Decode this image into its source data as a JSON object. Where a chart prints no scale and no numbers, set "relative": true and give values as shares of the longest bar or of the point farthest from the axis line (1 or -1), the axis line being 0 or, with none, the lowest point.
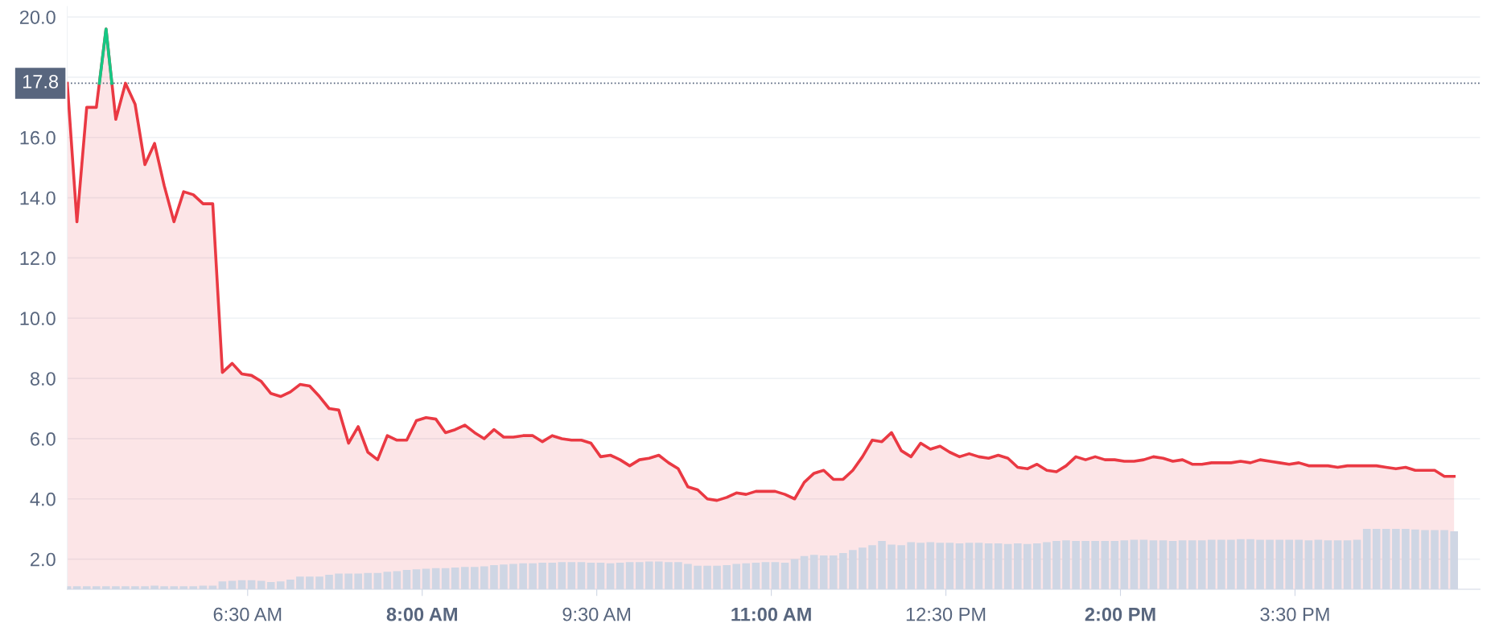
{
  "chart_data": [
    {
      "type": "area",
      "x": [
        4.95,
        5.033,
        5.117,
        5.2,
        5.283,
        5.367,
        5.45,
        5.533,
        5.617,
        5.7,
        5.783,
        5.867,
        5.95,
        6.033,
        6.117,
        6.2,
        6.283,
        6.367,
        6.45,
        6.533,
        6.617,
        6.7,
        6.783,
        6.867,
        6.95,
        7.033,
        7.117,
        7.2,
        7.283,
        7.367,
        7.45,
        7.533,
        7.617,
        7.7,
        7.783,
        7.867,
        7.95,
        8.033,
        8.117,
        8.2,
        8.283,
        8.367,
        8.45,
        8.533,
        8.617,
        8.7,
        8.783,
        8.867,
        8.95,
        9.033,
        9.117,
        9.2,
        9.283,
        9.367,
        9.45,
        9.533,
        9.617,
        9.7,
        9.783,
        9.867,
        9.95,
        10.033,
        10.117,
        10.2,
        10.283,
        10.367,
        10.45,
        10.533,
        10.617,
        10.7,
        10.783,
        10.867,
        10.95,
        11.033,
        11.117,
        11.2,
        11.283,
        11.367,
        11.45,
        11.533,
        11.617,
        11.7,
        11.783,
        11.867,
        11.95,
        12.033,
        12.117,
        12.2,
        12.283,
        12.367,
        12.45,
        12.533,
        12.617,
        12.7,
        12.783,
        12.867,
        12.95,
        13.033,
        13.117,
        13.2,
        13.283,
        13.367,
        13.45,
        13.533,
        13.617,
        13.7,
        13.783,
        13.867,
        13.95,
        14.033,
        14.117,
        14.2,
        14.283,
        14.367,
        14.45,
        14.533,
        14.617,
        14.7,
        14.783,
        14.867,
        14.95,
        15.033,
        15.117,
        15.2,
        15.283,
        15.367,
        15.45,
        15.533,
        15.617,
        15.7,
        15.783,
        15.867,
        15.95,
        16.033,
        16.117,
        16.2,
        16.283,
        16.367,
        16.45,
        16.533,
        16.617,
        16.7,
        16.783,
        16.867
      ],
      "series": [
        {
          "color": "#ea3943",
          "values": [
            17.8,
            13.2,
            17.0,
            17.0,
            19.6,
            16.6,
            17.8,
            17.1,
            15.1,
            15.8,
            14.4,
            13.2,
            14.2,
            14.1,
            13.8,
            13.8,
            8.2,
            8.5,
            8.15,
            8.1,
            7.9,
            7.5,
            7.4,
            7.55,
            7.8,
            7.75,
            7.4,
            7.0,
            6.95,
            5.85,
            6.4,
            5.55,
            5.3,
            6.1,
            5.95,
            5.95,
            6.6,
            6.7,
            6.65,
            6.2,
            6.3,
            6.45,
            6.2,
            6.0,
            6.3,
            6.05,
            6.05,
            6.1,
            6.1,
            5.9,
            6.1,
            6.0,
            5.95,
            5.95,
            5.85,
            5.4,
            5.45,
            5.3,
            5.1,
            5.3,
            5.35,
            5.45,
            5.2,
            5.0,
            4.4,
            4.3,
            4.0,
            3.95,
            4.05,
            4.2,
            4.15,
            4.25,
            4.25,
            4.25,
            4.15,
            4.0,
            4.55,
            4.85,
            4.95,
            4.65,
            4.65,
            4.95,
            5.4,
            5.95,
            5.9,
            6.2,
            5.6,
            5.4,
            5.85,
            5.65,
            5.75,
            5.55,
            5.4,
            5.5,
            5.4,
            5.35,
            5.45,
            5.35,
            5.05,
            5.0,
            5.15,
            4.95,
            4.9,
            5.1,
            5.4,
            5.3,
            5.4,
            5.3,
            5.3,
            5.25,
            5.25,
            5.3,
            5.4,
            5.35,
            5.25,
            5.3,
            5.15,
            5.15,
            5.2,
            5.2,
            5.2,
            5.25,
            5.2,
            5.3,
            5.25,
            5.2,
            5.15,
            5.2,
            5.1,
            5.1,
            5.1,
            5.05,
            5.1,
            5.1,
            5.1,
            5.1,
            5.05,
            5.0,
            5.05,
            4.95,
            4.95,
            4.95,
            4.75,
            4.75
          ]
        },
        {
          "type": "line",
          "color": "#16c784",
          "x": [
            5.226,
            5.283,
            5.333
          ],
          "values": [
            17.8,
            19.6,
            17.8
          ]
        }
      ],
      "xlim": [
        4.95,
        17.09
      ],
      "xticks": [
        {
          "value": 6.5,
          "label": "6:30 AM"
        },
        {
          "value": 8,
          "label": "8:00 AM"
        },
        {
          "value": 9.5,
          "label": "9:30 AM"
        },
        {
          "value": 11,
          "label": "11:00 AM"
        },
        {
          "value": 12.5,
          "label": "12:30 PM"
        },
        {
          "value": 14,
          "label": "2:00 PM"
        },
        {
          "value": 15.5,
          "label": "3:30 PM"
        }
      ],
      "ylim": [
        1.0,
        20.35
      ],
      "yticks": [
        {
          "value": 2,
          "label": "2.0"
        },
        {
          "value": 4,
          "label": "4.0"
        },
        {
          "value": 6,
          "label": "6.0"
        },
        {
          "value": 8,
          "label": "8.0"
        },
        {
          "value": 10,
          "label": "10.0"
        },
        {
          "value": 12,
          "label": "12.0"
        },
        {
          "value": 14,
          "label": "14.0"
        },
        {
          "value": 16,
          "label": "16.0"
        },
        {
          "value": 18,
          "label": null
        },
        {
          "value": 20,
          "label": "20.0"
        }
      ],
      "ref_lines": [
        {
          "axis": "y",
          "value": 17.8,
          "label": "17.8",
          "color": "#58667e",
          "line_style": "dotted"
        }
      ],
      "grid": "y"
    },
    {
      "type": "bar",
      "relative": true,
      "color": "#cfd6e4",
      "xlim": [
        4.95,
        17.09
      ],
      "x": [
        4.95,
        5.033,
        5.117,
        5.2,
        5.283,
        5.367,
        5.45,
        5.533,
        5.617,
        5.7,
        5.783,
        5.867,
        5.95,
        6.033,
        6.117,
        6.2,
        6.283,
        6.367,
        6.45,
        6.533,
        6.617,
        6.7,
        6.783,
        6.867,
        6.95,
        7.033,
        7.117,
        7.2,
        7.283,
        7.367,
        7.45,
        7.533,
        7.617,
        7.7,
        7.783,
        7.867,
        7.95,
        8.033,
        8.117,
        8.2,
        8.283,
        8.367,
        8.45,
        8.533,
        8.617,
        8.7,
        8.783,
        8.867,
        8.95,
        9.033,
        9.117,
        9.2,
        9.283,
        9.367,
        9.45,
        9.533,
        9.617,
        9.7,
        9.783,
        9.867,
        9.95,
        10.033,
        10.117,
        10.2,
        10.283,
        10.367,
        10.45,
        10.533,
        10.617,
        10.7,
        10.783,
        10.867,
        10.95,
        11.033,
        11.117,
        11.2,
        11.283,
        11.367,
        11.45,
        11.533,
        11.617,
        11.7,
        11.783,
        11.867,
        11.95,
        12.033,
        12.117,
        12.2,
        12.283,
        12.367,
        12.45,
        12.533,
        12.617,
        12.7,
        12.783,
        12.867,
        12.95,
        13.033,
        13.117,
        13.2,
        13.283,
        13.367,
        13.45,
        13.533,
        13.617,
        13.7,
        13.783,
        13.867,
        13.95,
        14.033,
        14.117,
        14.2,
        14.283,
        14.367,
        14.45,
        14.533,
        14.617,
        14.7,
        14.783,
        14.867,
        14.95,
        15.033,
        15.117,
        15.2,
        15.283,
        15.367,
        15.45,
        15.533,
        15.617,
        15.7,
        15.783,
        15.867,
        15.95,
        16.033,
        16.117,
        16.2,
        16.283,
        16.367,
        16.45,
        16.533,
        16.617,
        16.7,
        16.783,
        16.867
      ],
      "values": [
        0.05,
        0.05,
        0.05,
        0.05,
        0.05,
        0.05,
        0.05,
        0.05,
        0.05,
        0.06,
        0.05,
        0.05,
        0.05,
        0.05,
        0.06,
        0.06,
        0.13,
        0.14,
        0.15,
        0.15,
        0.14,
        0.12,
        0.13,
        0.16,
        0.21,
        0.21,
        0.21,
        0.24,
        0.26,
        0.26,
        0.26,
        0.27,
        0.27,
        0.29,
        0.3,
        0.32,
        0.33,
        0.34,
        0.35,
        0.35,
        0.36,
        0.37,
        0.37,
        0.38,
        0.4,
        0.41,
        0.42,
        0.43,
        0.43,
        0.44,
        0.44,
        0.45,
        0.45,
        0.45,
        0.44,
        0.44,
        0.43,
        0.44,
        0.45,
        0.45,
        0.46,
        0.46,
        0.45,
        0.45,
        0.42,
        0.39,
        0.39,
        0.39,
        0.4,
        0.42,
        0.43,
        0.44,
        0.45,
        0.45,
        0.44,
        0.5,
        0.55,
        0.57,
        0.56,
        0.56,
        0.6,
        0.65,
        0.69,
        0.73,
        0.8,
        0.74,
        0.73,
        0.78,
        0.77,
        0.78,
        0.77,
        0.77,
        0.76,
        0.77,
        0.77,
        0.76,
        0.76,
        0.75,
        0.76,
        0.75,
        0.76,
        0.78,
        0.8,
        0.81,
        0.8,
        0.8,
        0.8,
        0.8,
        0.8,
        0.81,
        0.82,
        0.82,
        0.81,
        0.81,
        0.8,
        0.81,
        0.81,
        0.81,
        0.82,
        0.82,
        0.82,
        0.83,
        0.83,
        0.82,
        0.82,
        0.82,
        0.82,
        0.82,
        0.81,
        0.82,
        0.81,
        0.81,
        0.81,
        0.82,
        1.0,
        1.0,
        1.0,
        1.0,
        1.0,
        0.99,
        0.98,
        0.98,
        0.98,
        0.96
      ]
    }
  ]
}
